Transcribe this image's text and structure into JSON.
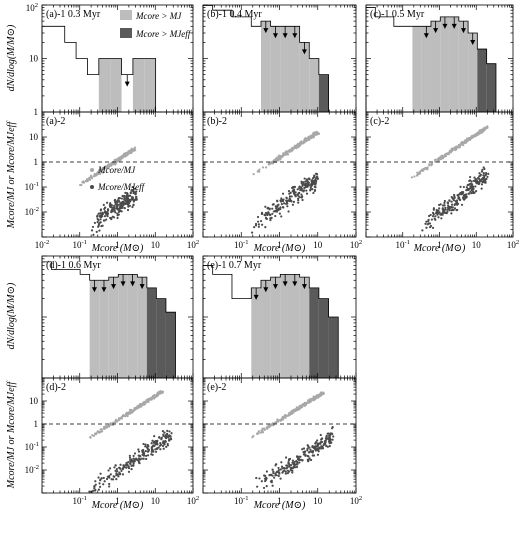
{
  "figure": {
    "hist_ylabel": "dN/dlog(M/M⊙)",
    "ratio_ylabel": "Mcore/MJ or Mcore/MJeff",
    "xlabel": "Mcore (M⊙)",
    "legend_top": [
      "Mcore > MJ",
      "Mcore > MJeff"
    ],
    "legend_bottom": [
      "Mcore/MJ",
      "Mcore/MJeff"
    ]
  },
  "chart_data": [
    {
      "panel": "(a)-1",
      "type": "bar",
      "time_label": "0.3 Myr",
      "xscale": "log",
      "yscale": "log",
      "xlim": [
        0.01,
        100
      ],
      "ylim": [
        1,
        100
      ],
      "bin_edges": [
        0.01,
        0.02,
        0.04,
        0.08,
        0.16,
        0.32,
        0.64,
        1.28,
        2.56,
        5.12,
        10.24
      ],
      "counts": [
        40,
        40,
        20,
        10,
        5,
        10,
        10,
        5,
        10,
        10
      ],
      "filled_light_bins": [
        5,
        6,
        8,
        9
      ],
      "filled_dark_bins": [],
      "upper_limit_arrows": [
        7
      ]
    },
    {
      "panel": "(a)-2",
      "type": "scatter",
      "xscale": "log",
      "yscale": "log",
      "xlim": [
        0.01,
        100
      ],
      "ylim": [
        0.001,
        100
      ],
      "reference_line": 1,
      "light_trend": {
        "x": [
          0.1,
          3
        ],
        "y": [
          0.12,
          3.5
        ]
      },
      "dark_trend": {
        "x": [
          0.2,
          3
        ],
        "y": [
          0.003,
          0.05
        ]
      }
    },
    {
      "panel": "(b)-1",
      "type": "bar",
      "time_label": "0.4 Myr",
      "xscale": "log",
      "yscale": "log",
      "xlim": [
        0.01,
        100
      ],
      "ylim": [
        1,
        100
      ],
      "bin_edges": [
        0.01,
        0.0179,
        0.032,
        0.0572,
        0.1024,
        0.183,
        0.328,
        0.586,
        1.05,
        1.88,
        3.36,
        6.0,
        10.7,
        19.2,
        34.4
      ],
      "counts": [
        110,
        80,
        80,
        60,
        60,
        40,
        50,
        40,
        40,
        40,
        20,
        10,
        5,
        0
      ],
      "filled_light_bins": [
        6,
        7,
        8,
        9,
        10,
        11
      ],
      "filled_dark_bins": [
        12,
        13
      ],
      "upper_limit_arrows": [
        6,
        7,
        8,
        9,
        10
      ]
    },
    {
      "panel": "(b)-2",
      "type": "scatter",
      "xscale": "log",
      "yscale": "log",
      "xlim": [
        0.01,
        100
      ],
      "ylim": [
        0.001,
        100
      ],
      "reference_line": 1,
      "light_trend": {
        "x": [
          0.2,
          10
        ],
        "y": [
          0.3,
          15
        ]
      },
      "dark_trend": {
        "x": [
          0.2,
          10
        ],
        "y": [
          0.003,
          0.2
        ]
      }
    },
    {
      "panel": "(c)-1",
      "type": "bar",
      "time_label": "0.5 Myr",
      "xscale": "log",
      "yscale": "log",
      "xlim": [
        0.01,
        100
      ],
      "ylim": [
        1,
        100
      ],
      "bin_edges": [
        0.01,
        0.0179,
        0.032,
        0.0572,
        0.1024,
        0.183,
        0.328,
        0.586,
        1.05,
        1.88,
        3.36,
        6.0,
        10.7,
        19.2,
        34.4
      ],
      "counts": [
        90,
        60,
        60,
        40,
        40,
        40,
        40,
        50,
        60,
        60,
        50,
        30,
        15,
        8
      ],
      "filled_light_bins": [
        5,
        6,
        7,
        8,
        9,
        10,
        11
      ],
      "filled_dark_bins": [
        12,
        13
      ],
      "upper_limit_arrows": [
        6,
        7,
        8,
        9,
        10,
        11
      ]
    },
    {
      "panel": "(c)-2",
      "type": "scatter",
      "xscale": "log",
      "yscale": "log",
      "xlim": [
        0.01,
        100
      ],
      "ylim": [
        0.001,
        100
      ],
      "reference_line": 1,
      "light_trend": {
        "x": [
          0.15,
          20
        ],
        "y": [
          0.2,
          25
        ]
      },
      "dark_trend": {
        "x": [
          0.3,
          20
        ],
        "y": [
          0.002,
          0.3
        ]
      }
    },
    {
      "panel": "(d)-1",
      "type": "bar",
      "time_label": "0.6 Myr",
      "xscale": "log",
      "yscale": "log",
      "xlim": [
        0.01,
        100
      ],
      "ylim": [
        1,
        100
      ],
      "bin_edges": [
        0.01,
        0.0179,
        0.032,
        0.0572,
        0.1024,
        0.183,
        0.328,
        0.586,
        1.05,
        1.88,
        3.36,
        6.0,
        10.7,
        19.2,
        34.4
      ],
      "counts": [
        80,
        60,
        60,
        60,
        50,
        40,
        40,
        45,
        50,
        50,
        45,
        30,
        20,
        12
      ],
      "filled_light_bins": [
        5,
        6,
        7,
        8,
        9,
        10
      ],
      "filled_dark_bins": [
        11,
        12,
        13
      ],
      "upper_limit_arrows": [
        5,
        6,
        7,
        8,
        9,
        10
      ]
    },
    {
      "panel": "(d)-2",
      "type": "scatter",
      "xscale": "log",
      "yscale": "log",
      "xlim": [
        0.01,
        100
      ],
      "ylim": [
        0.001,
        100
      ],
      "reference_line": 1,
      "light_trend": {
        "x": [
          0.15,
          15
        ],
        "y": [
          0.2,
          25
        ]
      },
      "dark_trend": {
        "x": [
          0.15,
          25
        ],
        "y": [
          0.001,
          0.3
        ]
      }
    },
    {
      "panel": "(e)-1",
      "type": "bar",
      "time_label": "0.7 Myr",
      "xscale": "log",
      "yscale": "log",
      "xlim": [
        0.01,
        100
      ],
      "ylim": [
        1,
        100
      ],
      "bin_edges": [
        0.01,
        0.0179,
        0.032,
        0.0572,
        0.1024,
        0.183,
        0.328,
        0.586,
        1.05,
        1.88,
        3.36,
        6.0,
        10.7,
        19.2,
        34.4
      ],
      "counts": [
        70,
        50,
        50,
        20,
        20,
        30,
        40,
        45,
        50,
        50,
        45,
        30,
        20,
        10
      ],
      "filled_light_bins": [
        5,
        6,
        7,
        8,
        9,
        10
      ],
      "filled_dark_bins": [
        11,
        12,
        13
      ],
      "upper_limit_arrows": [
        5,
        6,
        7,
        8,
        9,
        10
      ]
    },
    {
      "panel": "(e)-2",
      "type": "scatter",
      "xscale": "log",
      "yscale": "log",
      "xlim": [
        0.01,
        100
      ],
      "ylim": [
        0.001,
        100
      ],
      "reference_line": 1,
      "light_trend": {
        "x": [
          0.15,
          15
        ],
        "y": [
          0.2,
          25
        ]
      },
      "dark_trend": {
        "x": [
          0.15,
          25
        ],
        "y": [
          0.001,
          0.3
        ]
      }
    }
  ]
}
